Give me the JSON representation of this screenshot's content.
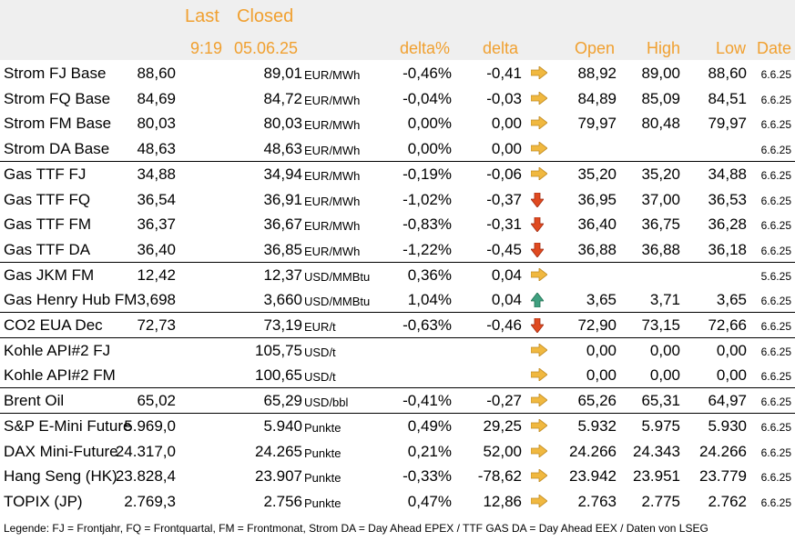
{
  "header": {
    "last_label": "Last",
    "closed_label": "Closed",
    "last_time": "9:19",
    "closed_date": "05.06.25",
    "delta_pct_label": "delta%",
    "delta_label": "delta",
    "open_label": "Open",
    "high_label": "High",
    "low_label": "Low",
    "date_label": "Date"
  },
  "colors": {
    "header_text": "#f0a030",
    "header_bg": "#efefef",
    "arrow_flat": "#f0b840",
    "arrow_down": "#e04a20",
    "arrow_up": "#40a080"
  },
  "rows": [
    {
      "name": "Strom FJ Base",
      "last": "88,60",
      "closed": "89,01",
      "unit": "EUR/MWh",
      "delta_pct": "-0,46%",
      "delta": "-0,41",
      "trend": "flat",
      "open": "88,92",
      "high": "89,00",
      "low": "88,60",
      "date": "6.6.25",
      "sep": false
    },
    {
      "name": "Strom FQ Base",
      "last": "84,69",
      "closed": "84,72",
      "unit": "EUR/MWh",
      "delta_pct": "-0,04%",
      "delta": "-0,03",
      "trend": "flat",
      "open": "84,89",
      "high": "85,09",
      "low": "84,51",
      "date": "6.6.25",
      "sep": false
    },
    {
      "name": "Strom FM Base",
      "last": "80,03",
      "closed": "80,03",
      "unit": "EUR/MWh",
      "delta_pct": "0,00%",
      "delta": "0,00",
      "trend": "flat",
      "open": "79,97",
      "high": "80,48",
      "low": "79,97",
      "date": "6.6.25",
      "sep": false
    },
    {
      "name": "Strom DA Base",
      "last": "48,63",
      "closed": "48,63",
      "unit": "EUR/MWh",
      "delta_pct": "0,00%",
      "delta": "0,00",
      "trend": "flat",
      "open": "",
      "high": "",
      "low": "",
      "date": "6.6.25",
      "sep": true
    },
    {
      "name": "Gas TTF FJ",
      "last": "34,88",
      "closed": "34,94",
      "unit": "EUR/MWh",
      "delta_pct": "-0,19%",
      "delta": "-0,06",
      "trend": "flat",
      "open": "35,20",
      "high": "35,20",
      "low": "34,88",
      "date": "6.6.25",
      "sep": false
    },
    {
      "name": "Gas TTF FQ",
      "last": "36,54",
      "closed": "36,91",
      "unit": "EUR/MWh",
      "delta_pct": "-1,02%",
      "delta": "-0,37",
      "trend": "down",
      "open": "36,95",
      "high": "37,00",
      "low": "36,53",
      "date": "6.6.25",
      "sep": false
    },
    {
      "name": "Gas TTF FM",
      "last": "36,37",
      "closed": "36,67",
      "unit": "EUR/MWh",
      "delta_pct": "-0,83%",
      "delta": "-0,31",
      "trend": "down",
      "open": "36,40",
      "high": "36,75",
      "low": "36,28",
      "date": "6.6.25",
      "sep": false
    },
    {
      "name": "Gas TTF DA",
      "last": "36,40",
      "closed": "36,85",
      "unit": "EUR/MWh",
      "delta_pct": "-1,22%",
      "delta": "-0,45",
      "trend": "down",
      "open": "36,88",
      "high": "36,88",
      "low": "36,18",
      "date": "6.6.25",
      "sep": true
    },
    {
      "name": "Gas JKM FM",
      "last": "12,42",
      "closed": "12,37",
      "unit": "USD/MMBtu",
      "delta_pct": "0,36%",
      "delta": "0,04",
      "trend": "flat",
      "open": "",
      "high": "",
      "low": "",
      "date": "5.6.25",
      "sep": false
    },
    {
      "name": "Gas Henry Hub FM",
      "last": "3,698",
      "closed": "3,660",
      "unit": "USD/MMBtu",
      "delta_pct": "1,04%",
      "delta": "0,04",
      "trend": "up",
      "open": "3,65",
      "high": "3,71",
      "low": "3,65",
      "date": "6.6.25",
      "sep": true
    },
    {
      "name": "CO2 EUA Dec",
      "last": "72,73",
      "closed": "73,19",
      "unit": "EUR/t",
      "delta_pct": "-0,63%",
      "delta": "-0,46",
      "trend": "down",
      "open": "72,90",
      "high": "73,15",
      "low": "72,66",
      "date": "6.6.25",
      "sep": true
    },
    {
      "name": "Kohle API#2 FJ",
      "last": "",
      "closed": "105,75",
      "unit": "USD/t",
      "delta_pct": "",
      "delta": "",
      "trend": "flat",
      "open": "0,00",
      "high": "0,00",
      "low": "0,00",
      "date": "6.6.25",
      "sep": false
    },
    {
      "name": "Kohle API#2 FM",
      "last": "",
      "closed": "100,65",
      "unit": "USD/t",
      "delta_pct": "",
      "delta": "",
      "trend": "flat",
      "open": "0,00",
      "high": "0,00",
      "low": "0,00",
      "date": "6.6.25",
      "sep": true
    },
    {
      "name": "Brent Oil",
      "last": "65,02",
      "closed": "65,29",
      "unit": "USD/bbl",
      "delta_pct": "-0,41%",
      "delta": "-0,27",
      "trend": "flat",
      "open": "65,26",
      "high": "65,31",
      "low": "64,97",
      "date": "6.6.25",
      "sep": true
    },
    {
      "name": "S&P E-Mini Future",
      "last": "5.969,0",
      "closed": "5.940",
      "unit": "Punkte",
      "delta_pct": "0,49%",
      "delta": "29,25",
      "trend": "flat",
      "open": "5.932",
      "high": "5.975",
      "low": "5.930",
      "date": "6.6.25",
      "sep": false
    },
    {
      "name": "DAX Mini-Future",
      "last": "24.317,0",
      "closed": "24.265",
      "unit": "Punkte",
      "delta_pct": "0,21%",
      "delta": "52,00",
      "trend": "flat",
      "open": "24.266",
      "high": "24.343",
      "low": "24.266",
      "date": "6.6.25",
      "sep": false
    },
    {
      "name": "Hang Seng (HK)",
      "last": "23.828,4",
      "closed": "23.907",
      "unit": "Punkte",
      "delta_pct": "-0,33%",
      "delta": "-78,62",
      "trend": "flat",
      "open": "23.942",
      "high": "23.951",
      "low": "23.779",
      "date": "6.6.25",
      "sep": false
    },
    {
      "name": "TOPIX (JP)",
      "last": "2.769,3",
      "closed": "2.756",
      "unit": "Punkte",
      "delta_pct": "0,47%",
      "delta": "12,86",
      "trend": "flat",
      "open": "2.763",
      "high": "2.775",
      "low": "2.762",
      "date": "6.6.25",
      "sep": false
    }
  ],
  "legend": "Legende: FJ = Frontjahr, FQ = Frontquartal, FM = Frontmonat, Strom DA = Day Ahead EPEX / TTF GAS DA = Day Ahead EEX / Daten von LSEG"
}
